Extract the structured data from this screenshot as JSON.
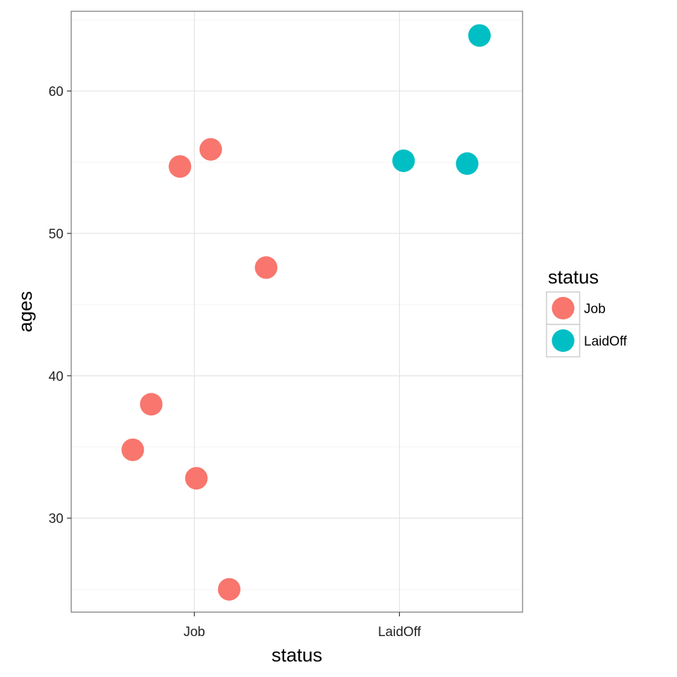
{
  "chart_data": {
    "type": "scatter",
    "xlabel": "status",
    "ylabel": "ages",
    "categories": [
      "Job",
      "LaidOff"
    ],
    "ylim": [
      23.4,
      65.6
    ],
    "y_major_ticks": [
      30,
      40,
      50,
      60
    ],
    "y_minor_ticks": [
      25,
      35,
      45,
      55,
      65
    ],
    "grid": true,
    "legend": {
      "title": "status",
      "placement": "right",
      "entries": [
        "Job",
        "LaidOff"
      ]
    },
    "colors": {
      "Job": "#F8766D",
      "LaidOff": "#00BFC4"
    },
    "series": [
      {
        "name": "Job",
        "x": [
          0.7,
          0.79,
          0.93,
          1.01,
          1.08,
          1.17,
          1.35
        ],
        "y": [
          34.8,
          38.0,
          54.7,
          32.8,
          55.9,
          25.0,
          47.6
        ]
      },
      {
        "name": "LaidOff",
        "x": [
          2.02,
          2.33,
          2.39
        ],
        "y": [
          55.1,
          54.9,
          63.9
        ]
      }
    ]
  }
}
